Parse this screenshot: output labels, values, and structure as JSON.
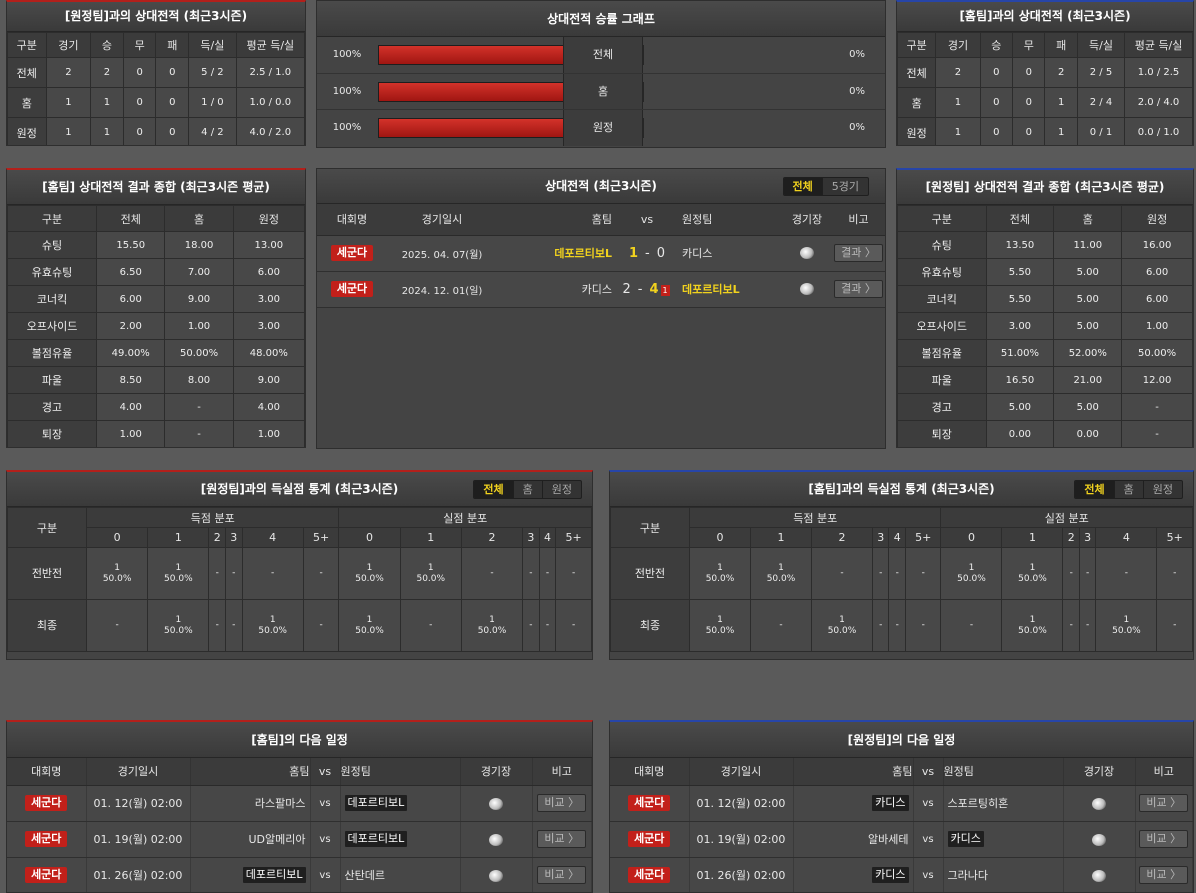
{
  "h2h_away": {
    "title": "[원정팀]과의 상대전적 (최근3시즌)",
    "headers": [
      "구분",
      "경기",
      "승",
      "무",
      "패",
      "득/실",
      "평균 득/실"
    ],
    "rows": [
      [
        "전체",
        "2",
        "2",
        "0",
        "0",
        "5 / 2",
        "2.5 / 1.0"
      ],
      [
        "홈",
        "1",
        "1",
        "0",
        "0",
        "1 / 0",
        "1.0 / 0.0"
      ],
      [
        "원정",
        "1",
        "1",
        "0",
        "0",
        "4 / 2",
        "4.0 / 2.0"
      ]
    ]
  },
  "winrate": {
    "title": "상대전적 승률 그래프",
    "rows": [
      {
        "left": "100%",
        "label": "전체",
        "right": "0%",
        "fill": 1.0
      },
      {
        "left": "100%",
        "label": "홈",
        "right": "0%",
        "fill": 1.0
      },
      {
        "left": "100%",
        "label": "원정",
        "right": "0%",
        "fill": 1.0
      }
    ]
  },
  "h2h_home": {
    "title": "[홈팀]과의 상대전적 (최근3시즌)",
    "headers": [
      "구분",
      "경기",
      "승",
      "무",
      "패",
      "득/실",
      "평균 득/실"
    ],
    "rows": [
      [
        "전체",
        "2",
        "0",
        "0",
        "2",
        "2 / 5",
        "1.0 / 2.5"
      ],
      [
        "홈",
        "1",
        "0",
        "0",
        "1",
        "2 / 4",
        "2.0 / 4.0"
      ],
      [
        "원정",
        "1",
        "0",
        "0",
        "1",
        "0 / 1",
        "0.0 / 1.0"
      ]
    ]
  },
  "summary_home": {
    "title": "[홈팀] 상대전적 결과 종합 (최근3시즌 평균)",
    "headers": [
      "구분",
      "전체",
      "홈",
      "원정"
    ],
    "rows": [
      [
        "슈팅",
        "15.50",
        "18.00",
        "13.00"
      ],
      [
        "유효슈팅",
        "6.50",
        "7.00",
        "6.00"
      ],
      [
        "코너킥",
        "6.00",
        "9.00",
        "3.00"
      ],
      [
        "오프사이드",
        "2.00",
        "1.00",
        "3.00"
      ],
      [
        "볼점유율",
        "49.00%",
        "50.00%",
        "48.00%"
      ],
      [
        "파울",
        "8.50",
        "8.00",
        "9.00"
      ],
      [
        "경고",
        "4.00",
        "-",
        "4.00"
      ],
      [
        "퇴장",
        "1.00",
        "-",
        "1.00"
      ]
    ]
  },
  "h2h_matches": {
    "title": "상대전적 (최근3시즌)",
    "toggle": [
      "전체",
      "5경기"
    ],
    "headers": {
      "league": "대회명",
      "date": "경기일시",
      "home": "홈팀",
      "vs": "vs",
      "away": "원정팀",
      "venue": "경기장",
      "note": "비고"
    },
    "rows": [
      {
        "league": "세군다",
        "date": "2025. 04. 07(월)",
        "home": "데포르티보L",
        "hs": "1",
        "sep": "-",
        "as": "0",
        "away": "카디스",
        "card": "",
        "btn": "결과 〉"
      },
      {
        "league": "세군다",
        "date": "2024. 12. 01(일)",
        "home": "카디스",
        "hs": "2",
        "sep": "-",
        "as": "4",
        "away": "데포르티보L",
        "card": "1",
        "btn": "결과 〉"
      }
    ]
  },
  "summary_away": {
    "title": "[원정팀] 상대전적 결과 종합 (최근3시즌 평균)",
    "headers": [
      "구분",
      "전체",
      "홈",
      "원정"
    ],
    "rows": [
      [
        "슈팅",
        "13.50",
        "11.00",
        "16.00"
      ],
      [
        "유효슈팅",
        "5.50",
        "5.00",
        "6.00"
      ],
      [
        "코너킥",
        "5.50",
        "5.00",
        "6.00"
      ],
      [
        "오프사이드",
        "3.00",
        "5.00",
        "1.00"
      ],
      [
        "볼점유율",
        "51.00%",
        "52.00%",
        "50.00%"
      ],
      [
        "파울",
        "16.50",
        "21.00",
        "12.00"
      ],
      [
        "경고",
        "5.00",
        "5.00",
        "-"
      ],
      [
        "퇴장",
        "0.00",
        "0.00",
        "-"
      ]
    ]
  },
  "dist_away": {
    "title": "[원정팀]과의 득실점 통계 (최근3시즌)",
    "toggle": [
      "전체",
      "홈",
      "원정"
    ],
    "col_label": "구분",
    "group_for": "득점 분포",
    "group_against": "실점 분포",
    "buckets": [
      "0",
      "1",
      "2",
      "3",
      "4",
      "5+"
    ],
    "rows": [
      {
        "label": "전반전",
        "cells": [
          [
            "1",
            "50.0%"
          ],
          [
            "1",
            "50.0%"
          ],
          [
            "-",
            ""
          ],
          [
            "-",
            ""
          ],
          [
            "-",
            ""
          ],
          [
            "-",
            ""
          ],
          [
            "1",
            "50.0%"
          ],
          [
            "1",
            "50.0%"
          ],
          [
            "-",
            ""
          ],
          [
            "-",
            ""
          ],
          [
            "-",
            ""
          ],
          [
            "-",
            ""
          ]
        ]
      },
      {
        "label": "최종",
        "cells": [
          [
            "-",
            ""
          ],
          [
            "1",
            "50.0%"
          ],
          [
            "-",
            ""
          ],
          [
            "-",
            ""
          ],
          [
            "1",
            "50.0%"
          ],
          [
            "-",
            ""
          ],
          [
            "1",
            "50.0%"
          ],
          [
            "-",
            ""
          ],
          [
            "1",
            "50.0%"
          ],
          [
            "-",
            ""
          ],
          [
            "-",
            ""
          ],
          [
            "-",
            ""
          ]
        ]
      }
    ]
  },
  "dist_home": {
    "title": "[홈팀]과의 득실점 통계 (최근3시즌)",
    "toggle": [
      "전체",
      "홈",
      "원정"
    ],
    "col_label": "구분",
    "group_for": "득점 분포",
    "group_against": "실점 분포",
    "buckets": [
      "0",
      "1",
      "2",
      "3",
      "4",
      "5+"
    ],
    "rows": [
      {
        "label": "전반전",
        "cells": [
          [
            "1",
            "50.0%"
          ],
          [
            "1",
            "50.0%"
          ],
          [
            "-",
            ""
          ],
          [
            "-",
            ""
          ],
          [
            "-",
            ""
          ],
          [
            "-",
            ""
          ],
          [
            "1",
            "50.0%"
          ],
          [
            "1",
            "50.0%"
          ],
          [
            "-",
            ""
          ],
          [
            "-",
            ""
          ],
          [
            "-",
            ""
          ],
          [
            "-",
            ""
          ]
        ]
      },
      {
        "label": "최종",
        "cells": [
          [
            "1",
            "50.0%"
          ],
          [
            "-",
            ""
          ],
          [
            "1",
            "50.0%"
          ],
          [
            "-",
            ""
          ],
          [
            "-",
            ""
          ],
          [
            "-",
            ""
          ],
          [
            "-",
            ""
          ],
          [
            "1",
            "50.0%"
          ],
          [
            "-",
            ""
          ],
          [
            "-",
            ""
          ],
          [
            "1",
            "50.0%"
          ],
          [
            "-",
            ""
          ]
        ]
      }
    ]
  },
  "next_home": {
    "title": "[홈팀]의 다음 일정",
    "headers": {
      "league": "대회명",
      "date": "경기일시",
      "home": "홈팀",
      "vs": "vs",
      "away": "원정팀",
      "venue": "경기장",
      "note": "비고"
    },
    "rows": [
      {
        "league": "세군다",
        "date": "01. 12(월) 02:00",
        "home": "라스팔마스",
        "away": "데포르티보L",
        "boxed": "away",
        "btn": "비교 〉"
      },
      {
        "league": "세군다",
        "date": "01. 19(월) 02:00",
        "home": "UD알메리아",
        "away": "데포르티보L",
        "boxed": "away",
        "btn": "비교 〉"
      },
      {
        "league": "세군다",
        "date": "01. 26(월) 02:00",
        "home": "데포르티보L",
        "away": "산탄데르",
        "boxed": "home",
        "btn": "비교 〉"
      }
    ]
  },
  "next_away": {
    "title": "[원정팀]의 다음 일정",
    "headers": {
      "league": "대회명",
      "date": "경기일시",
      "home": "홈팀",
      "vs": "vs",
      "away": "원정팀",
      "venue": "경기장",
      "note": "비고"
    },
    "rows": [
      {
        "league": "세군다",
        "date": "01. 12(월) 02:00",
        "home": "카디스",
        "away": "스포르팅히혼",
        "boxed": "home",
        "btn": "비교 〉"
      },
      {
        "league": "세군다",
        "date": "01. 19(월) 02:00",
        "home": "알바세테",
        "away": "카디스",
        "boxed": "away",
        "btn": "비교 〉"
      },
      {
        "league": "세군다",
        "date": "01. 26(월) 02:00",
        "home": "카디스",
        "away": "그라나다",
        "boxed": "home",
        "btn": "비교 〉"
      }
    ]
  }
}
